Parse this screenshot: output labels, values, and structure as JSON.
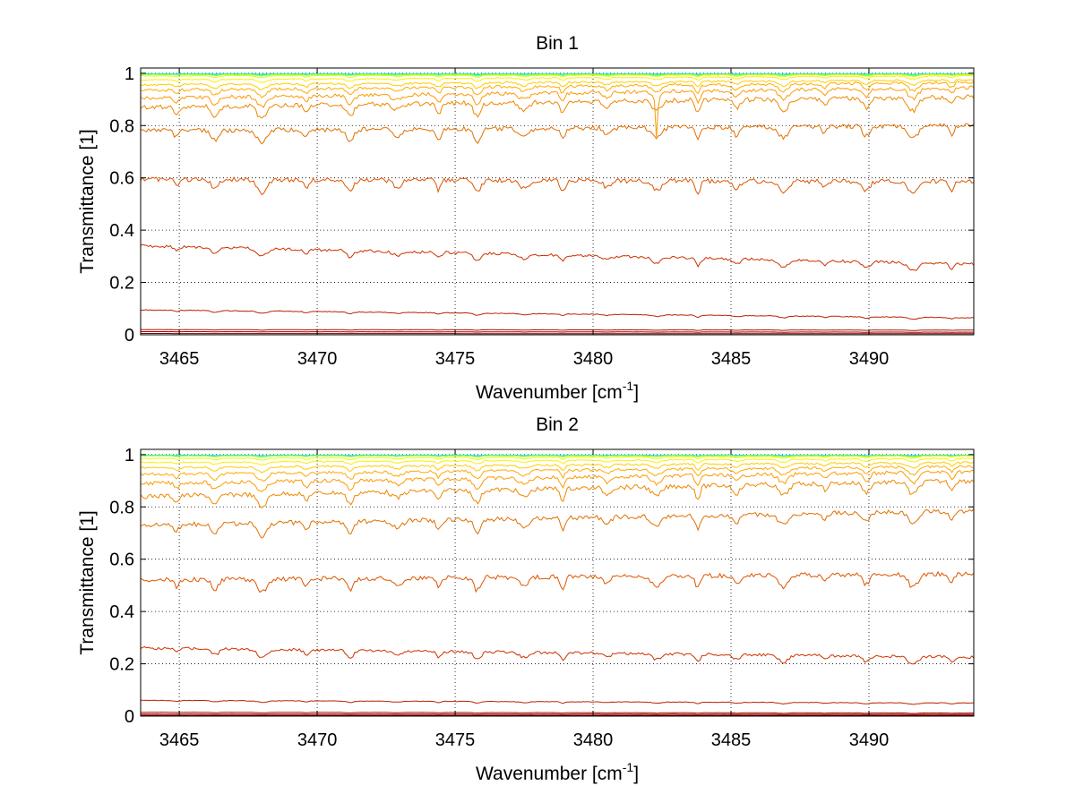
{
  "figure": {
    "background": "#ffffff"
  },
  "chart_data": [
    {
      "type": "line",
      "title": "Bin 1",
      "xlabel": "Wavenumber [cm",
      "xlabel_sup": "-1",
      "xlabel_close": "]",
      "ylabel": "Transmittance [1]",
      "xlim": [
        3463.6,
        3493.8
      ],
      "ylim": [
        0,
        1.02
      ],
      "xticks": [
        3465,
        3470,
        3475,
        3480,
        3485,
        3490
      ],
      "xtick_labels": [
        "3465",
        "3470",
        "3475",
        "3480",
        "3485",
        "3490"
      ],
      "yticks": [
        0,
        0.2,
        0.4,
        0.6,
        0.8,
        1
      ],
      "ytick_labels": [
        "0",
        "0.2",
        "0.4",
        "0.6",
        "0.8",
        "1"
      ],
      "grid": true,
      "grid_style": "dotted",
      "absorption_lines": [
        3464.9,
        3466.3,
        3468.0,
        3469.6,
        3471.2,
        3472.9,
        3474.4,
        3475.8,
        3477.5,
        3478.9,
        3480.5,
        3482.3,
        3483.8,
        3485.2,
        3486.9,
        3488.4,
        3489.9,
        3491.6,
        3493.0
      ],
      "spike": {
        "x": 3482.3,
        "depth": 0.15,
        "series_index": 8
      },
      "series": [
        {
          "color": "#00ccff",
          "x": [
            3463.6,
            3493.8
          ],
          "values": [
            0.998,
            0.998
          ],
          "depth": 0.002
        },
        {
          "color": "#00ffcc",
          "x": [
            3463.6,
            3493.8
          ],
          "values": [
            0.997,
            0.997
          ],
          "depth": 0.003
        },
        {
          "color": "#33ff99",
          "x": [
            3463.6,
            3493.8
          ],
          "values": [
            0.996,
            0.996
          ],
          "depth": 0.004
        },
        {
          "color": "#99ff33",
          "x": [
            3463.6,
            3493.8
          ],
          "values": [
            0.995,
            0.995
          ],
          "depth": 0.005
        },
        {
          "color": "#ddff00",
          "x": [
            3463.6,
            3493.8
          ],
          "values": [
            0.99,
            0.995
          ],
          "depth": 0.008
        },
        {
          "color": "#ffee00",
          "x": [
            3463.6,
            3493.8
          ],
          "values": [
            0.975,
            0.99
          ],
          "depth": 0.012
        },
        {
          "color": "#ffcc00",
          "x": [
            3463.6,
            3493.8
          ],
          "values": [
            0.955,
            0.975
          ],
          "depth": 0.02
        },
        {
          "color": "#ffaa00",
          "x": [
            3463.6,
            3493.8
          ],
          "values": [
            0.935,
            0.965
          ],
          "depth": 0.03
        },
        {
          "color": "#ff9900",
          "x": [
            3463.6,
            3493.8
          ],
          "values": [
            0.905,
            0.945
          ],
          "depth": 0.04
        },
        {
          "color": "#ee8800",
          "x": [
            3463.6,
            3493.8
          ],
          "values": [
            0.87,
            0.91
          ],
          "depth": 0.05
        },
        {
          "color": "#e07000",
          "x": [
            3463.6,
            3493.8
          ],
          "values": [
            0.78,
            0.8
          ],
          "depth": 0.05
        },
        {
          "color": "#dd5500",
          "x": [
            3463.6,
            3493.8
          ],
          "values": [
            0.595,
            0.585
          ],
          "depth": 0.05
        },
        {
          "color": "#cc3300",
          "x": [
            3463.6,
            3493.8
          ],
          "values": [
            0.34,
            0.27
          ],
          "depth": 0.03
        },
        {
          "color": "#bb2200",
          "x": [
            3463.6,
            3493.8
          ],
          "values": [
            0.095,
            0.065
          ],
          "depth": 0.008
        },
        {
          "color": "#aa1100",
          "x": [
            3463.6,
            3493.8
          ],
          "values": [
            0.02,
            0.018
          ],
          "depth": 0.002
        },
        {
          "color": "#990000",
          "x": [
            3463.6,
            3493.8
          ],
          "values": [
            0.012,
            0.01
          ],
          "depth": 0.001
        },
        {
          "color": "#880000",
          "x": [
            3463.6,
            3493.8
          ],
          "values": [
            0.005,
            0.004
          ],
          "depth": 0.0
        }
      ]
    },
    {
      "type": "line",
      "title": "Bin 2",
      "xlabel": "Wavenumber [cm",
      "xlabel_sup": "-1",
      "xlabel_close": "]",
      "ylabel": "Transmittance [1]",
      "xlim": [
        3463.6,
        3493.8
      ],
      "ylim": [
        0,
        1.02
      ],
      "xticks": [
        3465,
        3470,
        3475,
        3480,
        3485,
        3490
      ],
      "xtick_labels": [
        "3465",
        "3470",
        "3475",
        "3480",
        "3485",
        "3490"
      ],
      "yticks": [
        0,
        0.2,
        0.4,
        0.6,
        0.8,
        1
      ],
      "ytick_labels": [
        "0",
        "0.2",
        "0.4",
        "0.6",
        "0.8",
        "1"
      ],
      "grid": true,
      "grid_style": "dotted",
      "absorption_lines": [
        3464.9,
        3466.3,
        3468.0,
        3469.6,
        3471.2,
        3472.9,
        3474.4,
        3475.8,
        3477.5,
        3478.9,
        3480.5,
        3482.3,
        3483.8,
        3485.2,
        3486.9,
        3488.4,
        3489.9,
        3491.6,
        3493.0
      ],
      "series": [
        {
          "color": "#00ccff",
          "x": [
            3463.6,
            3493.8
          ],
          "values": [
            0.998,
            0.998
          ],
          "depth": 0.002
        },
        {
          "color": "#33ff99",
          "x": [
            3463.6,
            3493.8
          ],
          "values": [
            0.997,
            0.997
          ],
          "depth": 0.003
        },
        {
          "color": "#99ff33",
          "x": [
            3463.6,
            3493.8
          ],
          "values": [
            0.995,
            0.996
          ],
          "depth": 0.005
        },
        {
          "color": "#ddff00",
          "x": [
            3463.6,
            3493.8
          ],
          "values": [
            0.985,
            0.995
          ],
          "depth": 0.008
        },
        {
          "color": "#ffee00",
          "x": [
            3463.6,
            3493.8
          ],
          "values": [
            0.97,
            0.985
          ],
          "depth": 0.012
        },
        {
          "color": "#ffcc00",
          "x": [
            3463.6,
            3493.8
          ],
          "values": [
            0.95,
            0.97
          ],
          "depth": 0.02
        },
        {
          "color": "#ffaa00",
          "x": [
            3463.6,
            3493.8
          ],
          "values": [
            0.925,
            0.955
          ],
          "depth": 0.03
        },
        {
          "color": "#ff9900",
          "x": [
            3463.6,
            3493.8
          ],
          "values": [
            0.89,
            0.935
          ],
          "depth": 0.04
        },
        {
          "color": "#ee8800",
          "x": [
            3463.6,
            3493.8
          ],
          "values": [
            0.84,
            0.9
          ],
          "depth": 0.05
        },
        {
          "color": "#e07000",
          "x": [
            3463.6,
            3493.8
          ],
          "values": [
            0.73,
            0.785
          ],
          "depth": 0.05
        },
        {
          "color": "#dd5500",
          "x": [
            3463.6,
            3493.8
          ],
          "values": [
            0.52,
            0.545
          ],
          "depth": 0.05
        },
        {
          "color": "#cc3300",
          "x": [
            3463.6,
            3493.8
          ],
          "values": [
            0.26,
            0.225
          ],
          "depth": 0.03
        },
        {
          "color": "#bb2200",
          "x": [
            3463.6,
            3493.8
          ],
          "values": [
            0.06,
            0.05
          ],
          "depth": 0.006
        },
        {
          "color": "#aa1100",
          "x": [
            3463.6,
            3493.8
          ],
          "values": [
            0.015,
            0.012
          ],
          "depth": 0.002
        },
        {
          "color": "#990000",
          "x": [
            3463.6,
            3493.8
          ],
          "values": [
            0.008,
            0.007
          ],
          "depth": 0.001
        },
        {
          "color": "#880000",
          "x": [
            3463.6,
            3493.8
          ],
          "values": [
            0.003,
            0.003
          ],
          "depth": 0.0
        }
      ]
    }
  ]
}
